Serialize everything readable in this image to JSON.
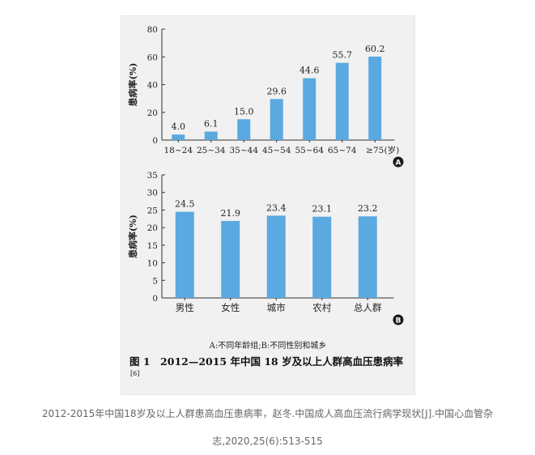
{
  "figure": {
    "panel_note": "A:不同年龄组;B:不同性别和城乡",
    "caption_title": "图 1　2012—2015 年中国 18 岁及以上人群高血压患病率",
    "caption_ref": "[6]"
  },
  "citation": {
    "line1": "2012-2015年中国18岁及以上人群患高血压患病率，赵冬.中国成人高血压流行病学现状[J].中国心血管杂",
    "line2": "志,2020,25(6):513-515"
  },
  "colors": {
    "bar": "#5aa9e0",
    "axis": "#333333"
  },
  "chart_data": [
    {
      "type": "bar",
      "panel_label": "A",
      "ylabel": "患病率(%)",
      "xlabel": "(岁)",
      "categories": [
        "18~24",
        "25~34",
        "35~44",
        "45~54",
        "55~64",
        "65~74",
        "≥75"
      ],
      "values": [
        4.0,
        6.1,
        15.0,
        29.6,
        44.6,
        55.7,
        60.2
      ],
      "data_labels": [
        "4.0",
        "6.1",
        "15.0",
        "29.6",
        "44.6",
        "55.7",
        "60.2"
      ],
      "yticks": [
        "0",
        "20",
        "40",
        "60",
        "80"
      ],
      "ylim": [
        0,
        80
      ],
      "grid": false
    },
    {
      "type": "bar",
      "panel_label": "B",
      "ylabel": "患病率(%)",
      "categories": [
        "男性",
        "女性",
        "城市",
        "农村",
        "总人群"
      ],
      "values": [
        24.5,
        21.9,
        23.4,
        23.1,
        23.2
      ],
      "data_labels": [
        "24.5",
        "21.9",
        "23.4",
        "23.1",
        "23.2"
      ],
      "yticks": [
        "0",
        "5",
        "10",
        "15",
        "20",
        "25",
        "30",
        "35"
      ],
      "ylim": [
        0,
        35
      ],
      "grid": false
    }
  ]
}
